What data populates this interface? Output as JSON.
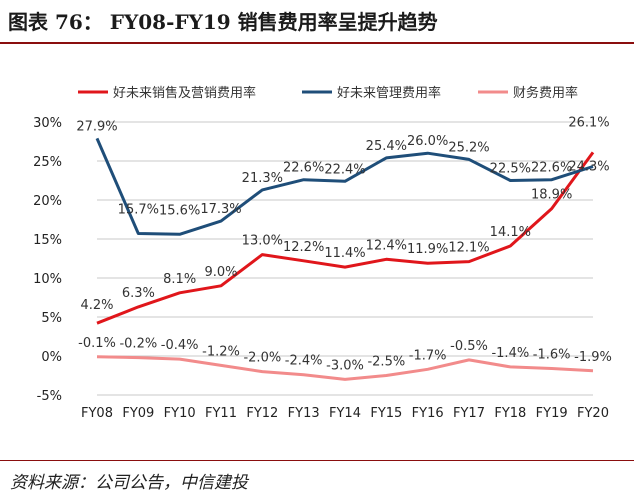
{
  "header": {
    "title": "图表 76：  FY08-FY19 销售费用率呈提升趋势"
  },
  "footer": {
    "source": "资料来源：公司公告，中信建投"
  },
  "chart_data": {
    "type": "line",
    "categories": [
      "FY08",
      "FY09",
      "FY10",
      "FY11",
      "FY12",
      "FY13",
      "FY14",
      "FY15",
      "FY16",
      "FY17",
      "FY18",
      "FY19",
      "FY20"
    ],
    "y_ticks": [
      "30%",
      "25%",
      "20%",
      "15%",
      "10%",
      "5%",
      "0%",
      "-5%"
    ],
    "ylim": [
      -5,
      30
    ],
    "grid": true,
    "legend_position": "top",
    "series": [
      {
        "name": "好未来销售及营销费用率",
        "color": "#e0161b",
        "values": [
          4.2,
          6.3,
          8.1,
          9.0,
          13.0,
          12.2,
          11.4,
          12.4,
          11.9,
          12.1,
          14.1,
          18.9,
          26.1
        ],
        "labels": [
          "4.2%",
          "6.3%",
          "8.1%",
          "9.0%",
          "13.0%",
          "12.2%",
          "11.4%",
          "12.4%",
          "11.9%",
          "12.1%",
          "14.1%",
          "18.9%",
          "26.1%"
        ]
      },
      {
        "name": "好未来管理费用率",
        "color": "#1f4e79",
        "values": [
          27.9,
          15.7,
          15.6,
          17.3,
          21.3,
          22.6,
          22.4,
          25.4,
          26.0,
          25.2,
          22.5,
          22.6,
          24.3
        ],
        "labels": [
          "27.9%",
          "15.7%",
          "15.6%",
          "17.3%",
          "21.3%",
          "22.6%",
          "22.4%",
          "25.4%",
          "26.0%",
          "25.2%",
          "22.5%",
          "22.6%",
          "24.3%"
        ]
      },
      {
        "name": "财务费用率",
        "color": "#f28b8b",
        "values": [
          -0.1,
          -0.2,
          -0.4,
          -1.2,
          -2.0,
          -2.4,
          -3.0,
          -2.5,
          -1.7,
          -0.5,
          -1.4,
          -1.6,
          -1.9
        ],
        "labels": [
          "-0.1%",
          "-0.2%",
          "-0.4%",
          "-1.2%",
          "-2.0%",
          "-2.4%",
          "-3.0%",
          "-2.5%",
          "-1.7%",
          "-0.5%",
          "-1.4%",
          "-1.6%",
          "-1.9%"
        ]
      }
    ]
  }
}
